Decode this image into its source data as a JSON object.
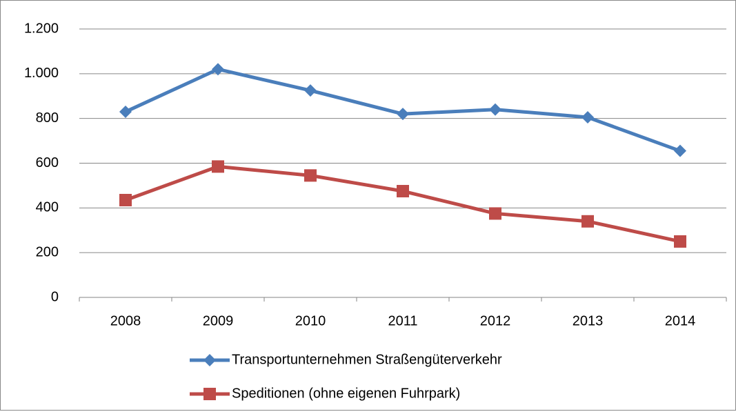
{
  "chart_data": {
    "type": "line",
    "categories": [
      "2008",
      "2009",
      "2010",
      "2011",
      "2012",
      "2013",
      "2014"
    ],
    "series": [
      {
        "name": "Transportunternehmen Straßengüterverkehr",
        "color": "#4a7ebb",
        "marker": "diamond",
        "values": [
          830,
          1020,
          925,
          820,
          840,
          805,
          655
        ]
      },
      {
        "name": "Speditionen (ohne eigenen Fuhrpark)",
        "color": "#be4b48",
        "marker": "square",
        "values": [
          435,
          585,
          545,
          475,
          375,
          340,
          250
        ]
      }
    ],
    "ylim": [
      0,
      1200
    ],
    "yticks": [
      0,
      200,
      400,
      600,
      800,
      {
        "value": 1000,
        "label": "1.000"
      },
      {
        "value": 1200,
        "label": "1.200"
      }
    ],
    "grid": true
  }
}
